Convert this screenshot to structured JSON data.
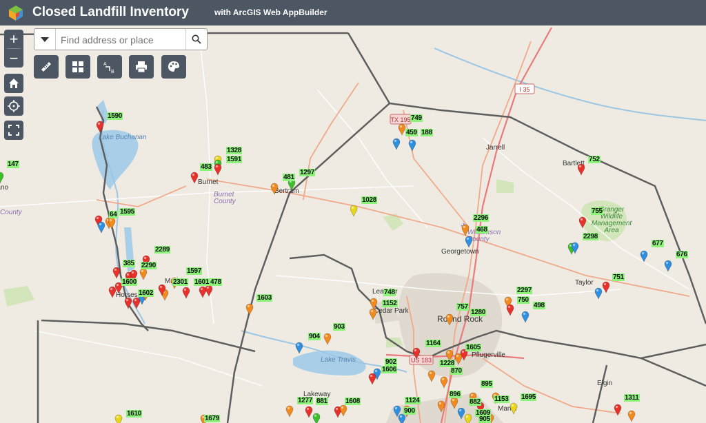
{
  "header": {
    "title": "Closed Landfill Inventory",
    "subtitle": "with ArcGIS Web AppBuilder"
  },
  "search": {
    "placeholder": "Find address or place"
  },
  "controls": {
    "zoom_in": "+",
    "zoom_out": "−"
  },
  "map": {
    "place_labels": {
      "jarrell": "Jarrell",
      "burnet": "Burnet",
      "burnet_county": "Burnet County",
      "bertram": "Bertram",
      "georgetown": "Georgetown",
      "williamson_county": "Williamson County",
      "round_rock": "Round Rock",
      "cedar_park": "Cedar Park",
      "leander": "Leander",
      "pflugerville": "Pflugerville",
      "taylor": "Taylor",
      "bartlett": "Bartlett",
      "lakeway": "Lakeway",
      "lake_travis": "Lake Travis",
      "lake_buchanan": "Lake Buchanan",
      "granger_wma": "Granger Wildlife Management Area",
      "horseshoe_bay": "Horseshoe Bay",
      "manor": "Manor",
      "elgin": "Elgin",
      "marble_falls": "Marble Falls",
      "llano": "Llano",
      "llano_county": "County"
    },
    "road_shields": {
      "i35": "I 35",
      "tx195": "TX 195",
      "us183": "US 183"
    },
    "landfill_labels": [
      "1590",
      "147",
      "1328",
      "1591",
      "483",
      "481",
      "1297",
      "749",
      "459",
      "188",
      "1028",
      "752",
      "64",
      "1595",
      "2296",
      "468",
      "755",
      "2298",
      "677",
      "676",
      "2289",
      "385",
      "2290",
      "1597",
      "2301",
      "1601",
      "478",
      "1600",
      "1602",
      "1603",
      "748",
      "1152",
      "757",
      "1280",
      "2297",
      "750",
      "498",
      "751",
      "903",
      "904",
      "1164",
      "1605",
      "902",
      "1606",
      "1228",
      "870",
      "895",
      "896",
      "882",
      "1153",
      "1695",
      "1277",
      "881",
      "1608",
      "1124",
      "900",
      "1609",
      "905",
      "1311",
      "1610",
      "1679"
    ],
    "marker_colors": {
      "red": "#e8312b",
      "orange": "#f28a1e",
      "blue": "#2f8fe0",
      "green": "#3bbf2a",
      "yellow": "#e8d61b"
    }
  }
}
